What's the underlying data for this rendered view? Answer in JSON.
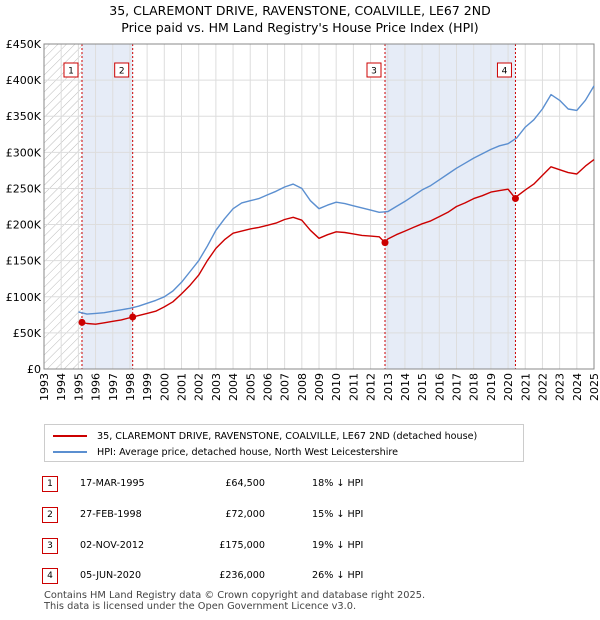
{
  "title_line1": "35, CLAREMONT DRIVE, RAVENSTONE, COALVILLE, LE67 2ND",
  "title_line2": "Price paid vs. HM Land Registry's House Price Index (HPI)",
  "colors": {
    "red": "#cc0000",
    "blue": "#5b8fd0",
    "shade": "#e6ecf7",
    "grid": "#dddddd"
  },
  "legend": {
    "red_label": "35, CLAREMONT DRIVE, RAVENSTONE, COALVILLE, LE67 2ND (detached house)",
    "blue_label": "HPI: Average price, detached house, North West Leicestershire"
  },
  "sales": [
    {
      "num": "1",
      "date": "17-MAR-1995",
      "price": "£64,500",
      "hpi": "18% ↓ HPI"
    },
    {
      "num": "2",
      "date": "27-FEB-1998",
      "price": "£72,000",
      "hpi": "15% ↓ HPI"
    },
    {
      "num": "3",
      "date": "02-NOV-2012",
      "price": "£175,000",
      "hpi": "19% ↓ HPI"
    },
    {
      "num": "4",
      "date": "05-JUN-2020",
      "price": "£236,000",
      "hpi": "26% ↓ HPI"
    }
  ],
  "footer": "Contains HM Land Registry data © Crown copyright and database right 2025.\nThis data is licensed under the Open Government Licence v3.0.",
  "chart_data": {
    "type": "line",
    "title": "35, CLAREMONT DRIVE, RAVENSTONE, COALVILLE, LE67 2ND Price paid vs. HM Land Registry's House Price Index (HPI)",
    "xlabel": "",
    "ylabel": "",
    "xlim": [
      1993,
      2025
    ],
    "ylim": [
      0,
      450000
    ],
    "x_ticks": [
      "1993",
      "1994",
      "1995",
      "1996",
      "1997",
      "1998",
      "1999",
      "2000",
      "2001",
      "2002",
      "2003",
      "2004",
      "2005",
      "2006",
      "2007",
      "2008",
      "2009",
      "2010",
      "2011",
      "2012",
      "2013",
      "2014",
      "2015",
      "2016",
      "2017",
      "2018",
      "2019",
      "2020",
      "2021",
      "2022",
      "2023",
      "2024",
      "2025"
    ],
    "y_ticks": [
      {
        "value": 0,
        "label": "£0"
      },
      {
        "value": 50000,
        "label": "£50K"
      },
      {
        "value": 100000,
        "label": "£100K"
      },
      {
        "value": 150000,
        "label": "£150K"
      },
      {
        "value": 200000,
        "label": "£200K"
      },
      {
        "value": 250000,
        "label": "£250K"
      },
      {
        "value": 300000,
        "label": "£300K"
      },
      {
        "value": 350000,
        "label": "£350K"
      },
      {
        "value": 400000,
        "label": "£400K"
      },
      {
        "value": 450000,
        "label": "£450K"
      }
    ],
    "grid": true,
    "hatched_range": [
      1993,
      1995.21
    ],
    "shaded_ranges": [
      [
        1995.21,
        1998.16
      ],
      [
        2012.84,
        2020.43
      ]
    ],
    "series": [
      {
        "name": "35, CLAREMONT DRIVE, RAVENSTONE, COALVILLE, LE67 2ND (detached house)",
        "color": "#cc0000",
        "x": [
          1995.21,
          1995.5,
          1996,
          1996.5,
          1997,
          1997.5,
          1998.16,
          1998.5,
          1999,
          1999.5,
          2000,
          2000.5,
          2001,
          2001.5,
          2002,
          2002.5,
          2003,
          2003.5,
          2004,
          2004.5,
          2005,
          2005.5,
          2006,
          2006.5,
          2007,
          2007.5,
          2008,
          2008.5,
          2009,
          2009.5,
          2010,
          2010.5,
          2011,
          2011.5,
          2012,
          2012.5,
          2012.84,
          2013,
          2013.5,
          2014,
          2014.5,
          2015,
          2015.5,
          2016,
          2016.5,
          2017,
          2017.5,
          2018,
          2018.5,
          2019,
          2019.5,
          2020,
          2020.43,
          2020.5,
          2021,
          2021.5,
          2022,
          2022.5,
          2023,
          2023.5,
          2024,
          2024.5,
          2025
        ],
        "y": [
          64500,
          63000,
          62000,
          64000,
          66000,
          68000,
          72000,
          74000,
          77000,
          80000,
          86000,
          93000,
          104000,
          116000,
          130000,
          150000,
          167000,
          179000,
          188000,
          191000,
          194000,
          196000,
          199000,
          202000,
          207000,
          210000,
          206000,
          192000,
          181000,
          186000,
          190000,
          189000,
          187000,
          185000,
          184000,
          183000,
          175000,
          180000,
          186000,
          191000,
          196000,
          201000,
          205000,
          211000,
          217000,
          225000,
          230000,
          236000,
          240000,
          245000,
          247000,
          249000,
          236000,
          239000,
          248000,
          256000,
          268000,
          280000,
          276000,
          272000,
          270000,
          281000,
          290000
        ]
      },
      {
        "name": "HPI: Average price, detached house, North West Leicestershire",
        "color": "#5b8fd0",
        "x": [
          1995,
          1995.5,
          1996,
          1996.5,
          1997,
          1997.5,
          1998,
          1998.5,
          1999,
          1999.5,
          2000,
          2000.5,
          2001,
          2001.5,
          2002,
          2002.5,
          2003,
          2003.5,
          2004,
          2004.5,
          2005,
          2005.5,
          2006,
          2006.5,
          2007,
          2007.5,
          2008,
          2008.5,
          2009,
          2009.5,
          2010,
          2010.5,
          2011,
          2011.5,
          2012,
          2012.5,
          2013,
          2013.5,
          2014,
          2014.5,
          2015,
          2015.5,
          2016,
          2016.5,
          2017,
          2017.5,
          2018,
          2018.5,
          2019,
          2019.5,
          2020,
          2020.5,
          2021,
          2021.5,
          2022,
          2022.5,
          2023,
          2023.5,
          2024,
          2024.5,
          2025
        ],
        "y": [
          79000,
          76000,
          77000,
          78000,
          80000,
          82000,
          84000,
          87000,
          91000,
          95000,
          100000,
          108000,
          120000,
          135000,
          150000,
          170000,
          192000,
          208000,
          222000,
          230000,
          233000,
          236000,
          241000,
          246000,
          252000,
          256000,
          250000,
          233000,
          222000,
          227000,
          231000,
          229000,
          226000,
          223000,
          220000,
          217000,
          218000,
          225000,
          232000,
          240000,
          248000,
          254000,
          262000,
          270000,
          278000,
          285000,
          292000,
          298000,
          304000,
          309000,
          312000,
          320000,
          335000,
          345000,
          360000,
          380000,
          372000,
          360000,
          358000,
          372000,
          392000
        ]
      }
    ],
    "sale_points": [
      {
        "label": "1",
        "x": 1995.21,
        "y": 64500
      },
      {
        "label": "2",
        "x": 1998.16,
        "y": 72000
      },
      {
        "label": "3",
        "x": 2012.84,
        "y": 175000
      },
      {
        "label": "4",
        "x": 2020.43,
        "y": 236000
      }
    ]
  }
}
